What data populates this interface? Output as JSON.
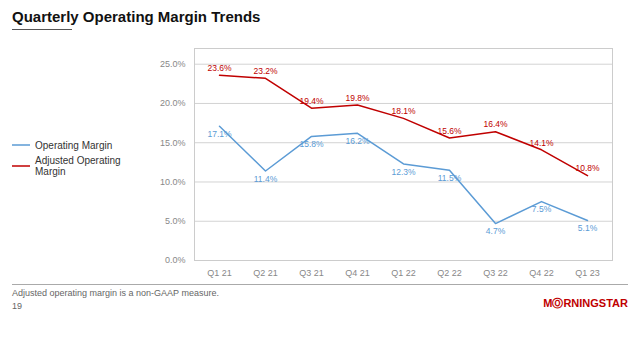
{
  "chart_data": {
    "type": "line",
    "title": "Quarterly Operating Margin Trends",
    "categories": [
      "Q1 21",
      "Q2 21",
      "Q3 21",
      "Q4 21",
      "Q1 22",
      "Q2 22",
      "Q3 22",
      "Q4 22",
      "Q1 23"
    ],
    "series": [
      {
        "name": "Operating Margin",
        "color": "#5b9bd5",
        "values": [
          17.1,
          11.4,
          15.8,
          16.2,
          12.3,
          11.5,
          4.7,
          7.5,
          5.1
        ],
        "value_labels": [
          "17.1%",
          "11.4%",
          "15.8%",
          "16.2%",
          "12.3%",
          "11.5%",
          "4.7%",
          "7.5%",
          "5.1%"
        ]
      },
      {
        "name": "Adjusted Operating Margin",
        "color": "#c00000",
        "values": [
          23.6,
          23.2,
          19.4,
          19.8,
          18.1,
          15.6,
          16.4,
          14.1,
          10.8
        ],
        "value_labels": [
          "23.6%",
          "23.2%",
          "19.4%",
          "19.8%",
          "18.1%",
          "15.6%",
          "16.4%",
          "14.1%",
          "10.8%"
        ]
      }
    ],
    "ylim": [
      0.0,
      27.0
    ],
    "yticks": [
      {
        "value": 0.0,
        "label": "0.0%"
      },
      {
        "value": 5.0,
        "label": "5.0%"
      },
      {
        "value": 10.0,
        "label": "10.0%"
      },
      {
        "value": 15.0,
        "label": "15.0%"
      },
      {
        "value": 20.0,
        "label": "20.0%"
      },
      {
        "value": 25.0,
        "label": "25.0%"
      }
    ],
    "grid": true,
    "legend": "left",
    "data_labels": true,
    "annotations": [
      "Adjusted operating margin is a non-GAAP measure.",
      "19",
      "MⓄRNINGSTAR"
    ]
  }
}
